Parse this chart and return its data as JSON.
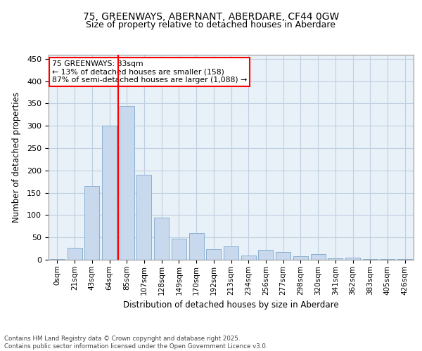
{
  "title_line1": "75, GREENWAYS, ABERNANT, ABERDARE, CF44 0GW",
  "title_line2": "Size of property relative to detached houses in Aberdare",
  "xlabel": "Distribution of detached houses by size in Aberdare",
  "ylabel": "Number of detached properties",
  "bin_labels": [
    "0sqm",
    "21sqm",
    "43sqm",
    "64sqm",
    "85sqm",
    "107sqm",
    "128sqm",
    "149sqm",
    "170sqm",
    "192sqm",
    "213sqm",
    "234sqm",
    "256sqm",
    "277sqm",
    "298sqm",
    "320sqm",
    "341sqm",
    "362sqm",
    "383sqm",
    "405sqm",
    "426sqm"
  ],
  "bar_values": [
    2,
    27,
    165,
    300,
    345,
    190,
    95,
    47,
    60,
    23,
    30,
    10,
    22,
    18,
    8,
    12,
    3,
    5,
    2,
    1,
    2
  ],
  "bar_color": "#c9d9ed",
  "bar_edge_color": "#7fa8cc",
  "vline_at_index": 4,
  "vline_color": "red",
  "annotation_text": "75 GREENWAYS: 83sqm\n← 13% of detached houses are smaller (158)\n87% of semi-detached houses are larger (1,088) →",
  "annotation_box_facecolor": "white",
  "annotation_box_edgecolor": "red",
  "ylim": [
    0,
    460
  ],
  "yticks": [
    0,
    50,
    100,
    150,
    200,
    250,
    300,
    350,
    400,
    450
  ],
  "grid_color": "#c0d0e0",
  "bg_color": "#e8f0f8",
  "footer_text": "Contains HM Land Registry data © Crown copyright and database right 2025.\nContains public sector information licensed under the Open Government Licence v3.0.",
  "figsize": [
    6.0,
    5.0
  ],
  "dpi": 100
}
